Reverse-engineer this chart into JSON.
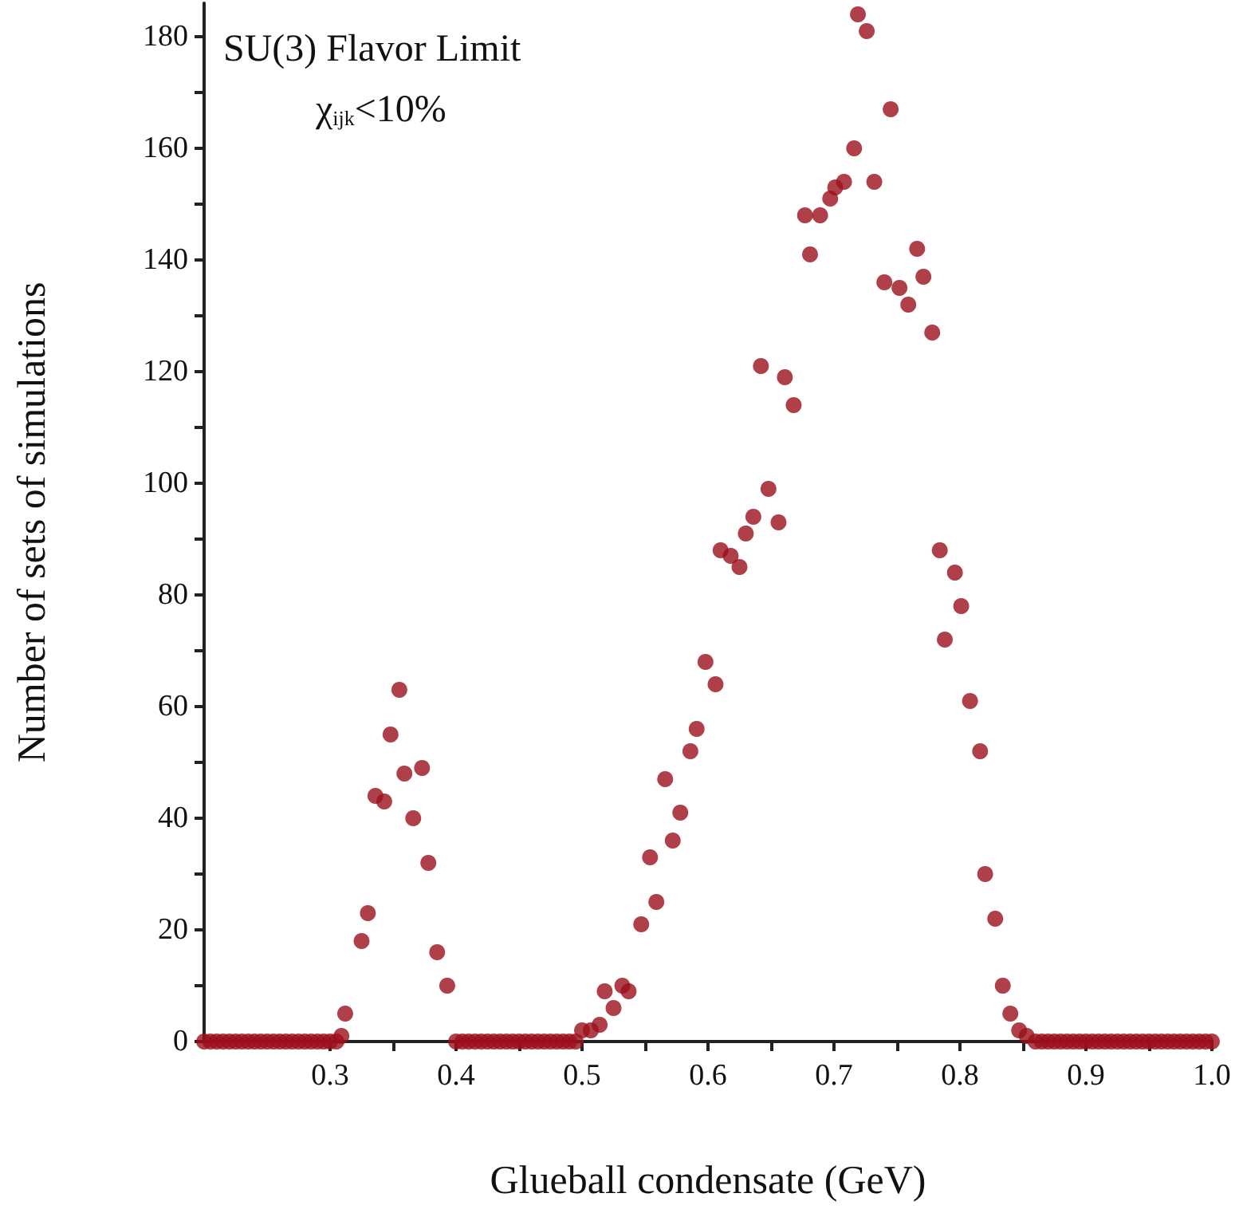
{
  "chart_data": {
    "type": "scatter",
    "title": "SU(3) Flavor Limit",
    "subtitle": "χ$_{ijk}$<10%",
    "xlabel": "Glueball condensate (GeV)",
    "ylabel": "Number of sets of simulations",
    "x": [
      0.2,
      0.205,
      0.21,
      0.215,
      0.22,
      0.225,
      0.23,
      0.235,
      0.24,
      0.245,
      0.25,
      0.255,
      0.26,
      0.265,
      0.27,
      0.275,
      0.28,
      0.285,
      0.29,
      0.295,
      0.3,
      0.305,
      0.309,
      0.312,
      0.325,
      0.33,
      0.336,
      0.343,
      0.348,
      0.355,
      0.359,
      0.366,
      0.373,
      0.378,
      0.385,
      0.393,
      0.4,
      0.405,
      0.41,
      0.415,
      0.42,
      0.425,
      0.43,
      0.435,
      0.44,
      0.445,
      0.45,
      0.455,
      0.46,
      0.465,
      0.47,
      0.475,
      0.48,
      0.485,
      0.49,
      0.495,
      0.5,
      0.507,
      0.514,
      0.518,
      0.525,
      0.532,
      0.537,
      0.547,
      0.554,
      0.559,
      0.566,
      0.572,
      0.578,
      0.586,
      0.591,
      0.598,
      0.606,
      0.61,
      0.618,
      0.625,
      0.63,
      0.636,
      0.642,
      0.648,
      0.656,
      0.661,
      0.668,
      0.677,
      0.681,
      0.689,
      0.697,
      0.701,
      0.708,
      0.716,
      0.719,
      0.726,
      0.732,
      0.74,
      0.745,
      0.752,
      0.759,
      0.766,
      0.771,
      0.778,
      0.784,
      0.788,
      0.796,
      0.801,
      0.808,
      0.816,
      0.82,
      0.828,
      0.834,
      0.84,
      0.847,
      0.853,
      0.86,
      0.865,
      0.87,
      0.875,
      0.88,
      0.885,
      0.89,
      0.895,
      0.9,
      0.905,
      0.91,
      0.915,
      0.92,
      0.925,
      0.93,
      0.935,
      0.94,
      0.945,
      0.95,
      0.955,
      0.96,
      0.965,
      0.97,
      0.975,
      0.98,
      0.985,
      0.99,
      0.995,
      1.0
    ],
    "values": [
      0,
      0,
      0,
      0,
      0,
      0,
      0,
      0,
      0,
      0,
      0,
      0,
      0,
      0,
      0,
      0,
      0,
      0,
      0,
      0,
      0,
      0,
      1,
      5,
      18,
      23,
      44,
      43,
      55,
      63,
      48,
      40,
      49,
      32,
      16,
      10,
      0,
      0,
      0,
      0,
      0,
      0,
      0,
      0,
      0,
      0,
      0,
      0,
      0,
      0,
      0,
      0,
      0,
      0,
      0,
      0,
      2,
      2,
      3,
      9,
      6,
      10,
      9,
      21,
      33,
      25,
      47,
      36,
      41,
      52,
      56,
      68,
      64,
      88,
      87,
      85,
      91,
      94,
      121,
      99,
      93,
      119,
      114,
      148,
      141,
      148,
      151,
      153,
      154,
      160,
      184,
      181,
      154,
      136,
      167,
      135,
      132,
      142,
      137,
      127,
      88,
      72,
      84,
      78,
      61,
      52,
      30,
      22,
      10,
      5,
      2,
      1,
      0,
      0,
      0,
      0,
      0,
      0,
      0,
      0,
      0,
      0,
      0,
      0,
      0,
      0,
      0,
      0,
      0,
      0,
      0,
      0,
      0,
      0,
      0,
      0,
      0,
      0,
      0,
      0,
      0
    ],
    "color": "#9b0f1a",
    "marker": "circle",
    "xlim": [
      0.2,
      1.0
    ],
    "xticks": [
      0.3,
      {
        "value": 0.35,
        "label": null
      },
      0.4,
      {
        "value": 0.45,
        "label": null
      },
      0.5,
      {
        "value": 0.55,
        "label": null
      },
      0.6,
      {
        "value": 0.65,
        "label": null
      },
      0.7,
      {
        "value": 0.75,
        "label": null
      },
      0.8,
      {
        "value": 0.85,
        "label": null
      },
      0.9,
      {
        "value": 0.95,
        "label": null
      },
      {
        "value": 1.0,
        "label": "1.0"
      }
    ],
    "ylim": [
      0,
      186
    ],
    "yticks": [
      0,
      {
        "value": 10,
        "label": null
      },
      20,
      {
        "value": 30,
        "label": null
      },
      40,
      {
        "value": 50,
        "label": null
      },
      60,
      {
        "value": 70,
        "label": null
      },
      80,
      {
        "value": 90,
        "label": null
      },
      100,
      {
        "value": 110,
        "label": null
      },
      120,
      {
        "value": 130,
        "label": null
      },
      140,
      {
        "value": 150,
        "label": null
      },
      160,
      {
        "value": 170,
        "label": null
      },
      180
    ],
    "grid": false
  }
}
